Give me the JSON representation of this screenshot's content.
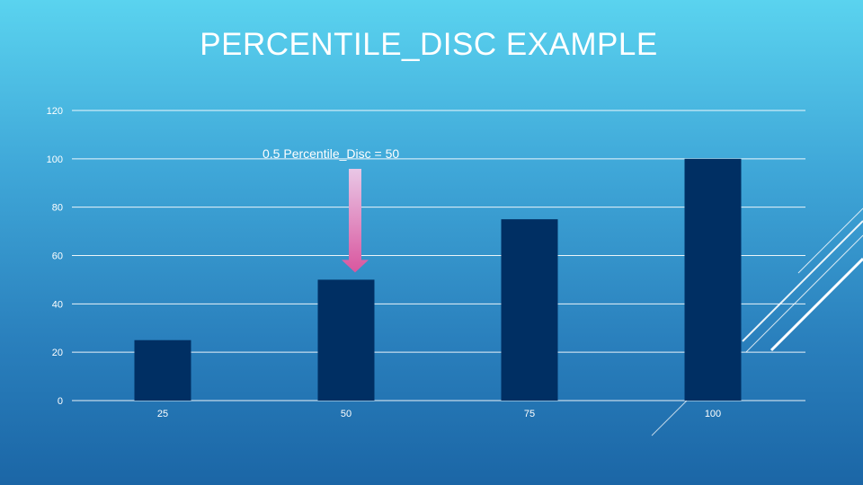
{
  "slide": {
    "title": "PERCENTILE_DISC EXAMPLE"
  },
  "colors": {
    "bar": "#002f63",
    "grid": "#ffffff",
    "arrow_top": "#e9c7e6",
    "arrow_bottom": "#d9569e"
  },
  "chart_data": {
    "type": "bar",
    "categories": [
      "25",
      "50",
      "75",
      "100"
    ],
    "values": [
      25,
      50,
      75,
      100
    ],
    "title": "",
    "xlabel": "",
    "ylabel": "",
    "ylim": [
      0,
      120
    ],
    "yticks": [
      0,
      20,
      40,
      60,
      80,
      100,
      120
    ],
    "grid": true,
    "legend": "none",
    "annotation": {
      "text": "0.5 Percentile_Disc = 50",
      "target_category": "50"
    }
  }
}
